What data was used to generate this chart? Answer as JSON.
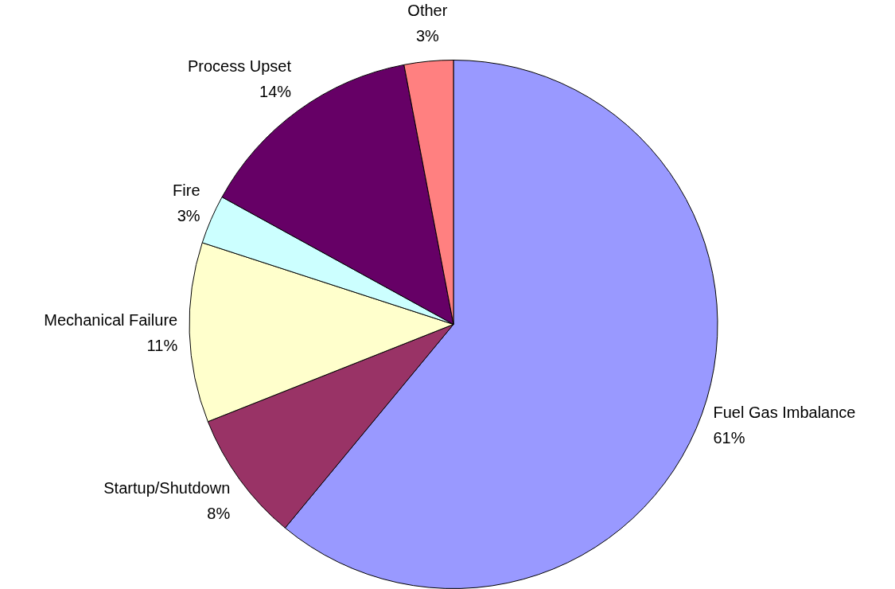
{
  "chart_data": {
    "type": "pie",
    "categories": [
      "Fuel Gas Imbalance",
      "Startup/Shutdown",
      "Mechanical Failure",
      "Fire",
      "Process Upset",
      "Other"
    ],
    "values": [
      61,
      8,
      11,
      3,
      14,
      3
    ],
    "colors": [
      "#9999ff",
      "#993366",
      "#ffffcc",
      "#ccffff",
      "#660066",
      "#ff8080"
    ],
    "value_labels": [
      "61%",
      "8%",
      "11%",
      "3%",
      "14%",
      "3%"
    ],
    "legend": false
  }
}
